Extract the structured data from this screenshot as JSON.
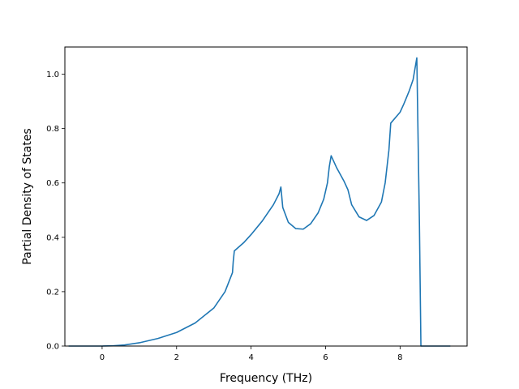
{
  "chart_data": {
    "type": "line",
    "title": "",
    "xlabel": "Frequency (THz)",
    "ylabel": "Partial Density of States",
    "xlim": [
      -1.0,
      9.8
    ],
    "ylim": [
      0.0,
      1.1
    ],
    "xticks": [
      0,
      2,
      4,
      6,
      8
    ],
    "yticks": [
      0.0,
      0.2,
      0.4,
      0.6,
      0.8,
      1.0
    ],
    "xtick_labels": [
      "0",
      "2",
      "4",
      "6",
      "8"
    ],
    "ytick_labels": [
      "0.0",
      "0.2",
      "0.4",
      "0.6",
      "0.8",
      "1.0"
    ],
    "grid": false,
    "line_color": "#1f77b4",
    "series": [
      {
        "x": [
          -0.9,
          0.0,
          0.3,
          0.6,
          1.0,
          1.5,
          2.0,
          2.5,
          3.0,
          3.3,
          3.5,
          3.52,
          3.55,
          3.8,
          4.0,
          4.3,
          4.6,
          4.75,
          4.8,
          4.85,
          5.0,
          5.2,
          5.4,
          5.6,
          5.8,
          5.95,
          6.05,
          6.1,
          6.15,
          6.3,
          6.5,
          6.6,
          6.7,
          6.9,
          7.1,
          7.3,
          7.5,
          7.6,
          7.7,
          7.75,
          8.0,
          8.1,
          8.25,
          8.35,
          8.45,
          8.52,
          8.56,
          9.35
        ],
        "y": [
          0.0,
          0.0,
          0.001,
          0.004,
          0.012,
          0.028,
          0.05,
          0.085,
          0.14,
          0.2,
          0.27,
          0.31,
          0.35,
          0.38,
          0.41,
          0.46,
          0.52,
          0.56,
          0.585,
          0.51,
          0.455,
          0.432,
          0.43,
          0.45,
          0.49,
          0.54,
          0.6,
          0.66,
          0.7,
          0.655,
          0.605,
          0.575,
          0.52,
          0.475,
          0.462,
          0.48,
          0.53,
          0.6,
          0.72,
          0.82,
          0.86,
          0.89,
          0.94,
          0.98,
          1.06,
          0.45,
          0.0,
          0.0
        ]
      }
    ]
  }
}
